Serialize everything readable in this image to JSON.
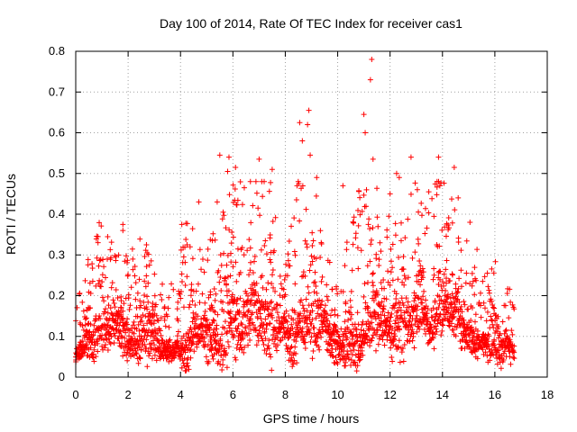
{
  "chart_data": {
    "type": "scatter",
    "title": "Day 100 of 2014, Rate Of TEC Index for receiver cas1",
    "xlabel": "GPS time / hours",
    "ylabel": "ROTI / TECUs",
    "xlim": [
      0,
      18
    ],
    "ylim": [
      0,
      0.8
    ],
    "xticks": [
      "0",
      "2",
      "4",
      "6",
      "8",
      "10",
      "12",
      "14",
      "16",
      "18"
    ],
    "yticks": [
      "0",
      "0.1",
      "0.2",
      "0.3",
      "0.4",
      "0.5",
      "0.6",
      "0.7",
      "0.8"
    ],
    "grid": true,
    "marker": "+",
    "color": "#ff0000",
    "series_name": "ROTI",
    "x_data_end": 16.75,
    "point_spacing_hours": 0.0083,
    "profile": [
      [
        0.0,
        0.05,
        0.03
      ],
      [
        0.5,
        0.09,
        0.05
      ],
      [
        0.8,
        0.12,
        0.07
      ],
      [
        1.2,
        0.1,
        0.06
      ],
      [
        2.0,
        0.09,
        0.05
      ],
      [
        2.5,
        0.1,
        0.06
      ],
      [
        3.2,
        0.07,
        0.04
      ],
      [
        3.8,
        0.06,
        0.04
      ],
      [
        4.2,
        0.1,
        0.07
      ],
      [
        4.8,
        0.08,
        0.06
      ],
      [
        5.5,
        0.09,
        0.07
      ],
      [
        6.0,
        0.14,
        0.08
      ],
      [
        6.8,
        0.16,
        0.09
      ],
      [
        7.5,
        0.14,
        0.09
      ],
      [
        8.0,
        0.06,
        0.05
      ],
      [
        8.5,
        0.16,
        0.09
      ],
      [
        9.0,
        0.15,
        0.09
      ],
      [
        9.5,
        0.09,
        0.06
      ],
      [
        10.0,
        0.05,
        0.04
      ],
      [
        10.5,
        0.1,
        0.07
      ],
      [
        11.0,
        0.14,
        0.09
      ],
      [
        11.5,
        0.13,
        0.08
      ],
      [
        12.0,
        0.09,
        0.06
      ],
      [
        12.5,
        0.12,
        0.08
      ],
      [
        13.0,
        0.15,
        0.08
      ],
      [
        13.5,
        0.14,
        0.08
      ],
      [
        14.0,
        0.16,
        0.08
      ],
      [
        14.5,
        0.12,
        0.07
      ],
      [
        15.0,
        0.1,
        0.06
      ],
      [
        15.5,
        0.09,
        0.05
      ],
      [
        16.0,
        0.08,
        0.05
      ],
      [
        16.75,
        0.07,
        0.04
      ]
    ],
    "spikes": [
      [
        11.3,
        0.78
      ],
      [
        11.25,
        0.73
      ],
      [
        8.9,
        0.655
      ],
      [
        8.85,
        0.62
      ],
      [
        11.0,
        0.645
      ],
      [
        11.05,
        0.6
      ],
      [
        8.55,
        0.625
      ],
      [
        8.65,
        0.58
      ],
      [
        8.95,
        0.545
      ],
      [
        5.5,
        0.545
      ],
      [
        5.85,
        0.54
      ],
      [
        5.8,
        0.505
      ],
      [
        12.8,
        0.54
      ],
      [
        13.85,
        0.54
      ],
      [
        14.45,
        0.515
      ],
      [
        11.35,
        0.535
      ],
      [
        7.0,
        0.535
      ],
      [
        6.1,
        0.515
      ],
      [
        7.5,
        0.51
      ],
      [
        12.25,
        0.5
      ],
      [
        12.35,
        0.49
      ],
      [
        9.2,
        0.49
      ],
      [
        8.45,
        0.47
      ],
      [
        10.2,
        0.47
      ],
      [
        11.1,
        0.46
      ],
      [
        13.9,
        0.47
      ],
      [
        12.0,
        0.45
      ],
      [
        4.7,
        0.43
      ],
      [
        14.6,
        0.44
      ],
      [
        5.4,
        0.43
      ],
      [
        1.8,
        0.375
      ],
      [
        1.8,
        0.36
      ],
      [
        0.85,
        0.345
      ],
      [
        0.85,
        0.33
      ],
      [
        2.7,
        0.325
      ],
      [
        4.05,
        0.375
      ],
      [
        4.25,
        0.325
      ],
      [
        10.6,
        0.38
      ],
      [
        11.95,
        0.395
      ],
      [
        15.05,
        0.38
      ]
    ]
  }
}
